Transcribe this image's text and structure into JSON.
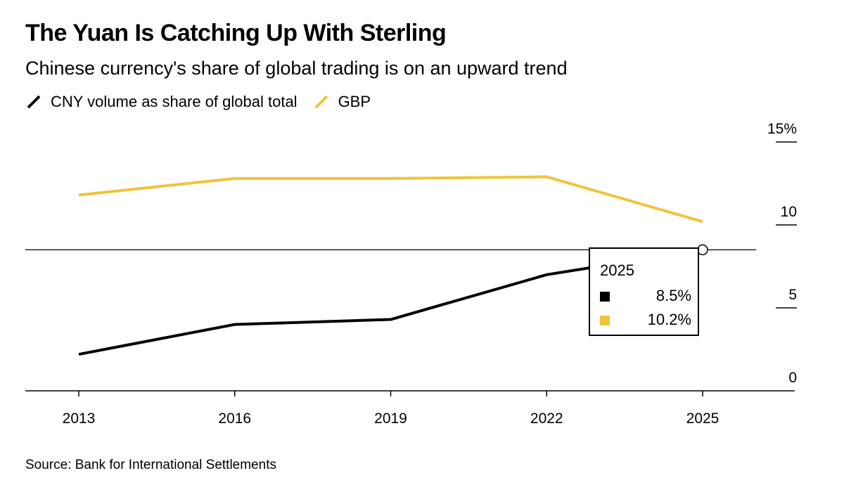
{
  "title": "The Yuan Is Catching Up With Sterling",
  "subtitle": "Chinese currency's share of global trading is on an upward trend",
  "source": "Source: Bank for International Settlements",
  "chart_data": {
    "type": "line",
    "x": [
      2013,
      2016,
      2019,
      2022,
      2025
    ],
    "x_tick_labels": [
      "2013",
      "2016",
      "2019",
      "2022",
      "2025"
    ],
    "series": [
      {
        "name": "CNY volume as share of global total",
        "color": "#000000",
        "values": [
          2.2,
          4.0,
          4.3,
          7.0,
          8.5
        ]
      },
      {
        "name": "GBP",
        "color": "#F0C43A",
        "values": [
          11.8,
          12.8,
          12.8,
          12.9,
          10.2
        ]
      }
    ],
    "y_tick_labels": [
      "0",
      "5",
      "10",
      "15%"
    ],
    "y_ticks": [
      0,
      5,
      10,
      15
    ],
    "ylim": [
      0,
      15
    ],
    "legend_position": "top-left",
    "tooltip": {
      "year": "2025",
      "values": [
        "8.5%",
        "10.2%"
      ]
    }
  }
}
